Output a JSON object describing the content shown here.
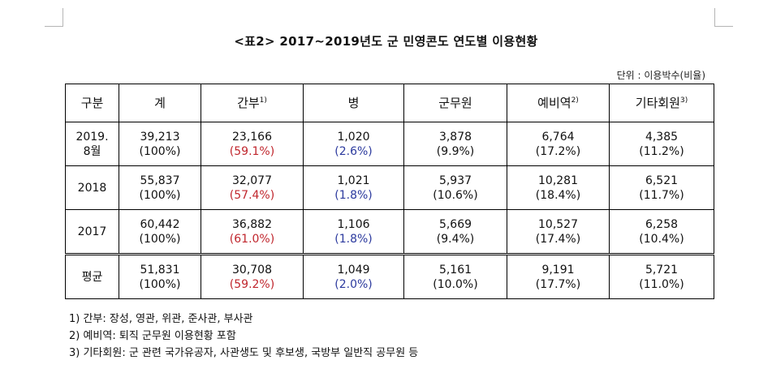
{
  "title": "<표2> 2017~2019년도 군 민영콘도 연도별 이용현황",
  "unit": "단위 : 이용박수(비율)",
  "columns": [
    {
      "label": "구분",
      "sup": ""
    },
    {
      "label": "계",
      "sup": ""
    },
    {
      "label": "간부",
      "sup": "1)"
    },
    {
      "label": "병",
      "sup": ""
    },
    {
      "label": "군무원",
      "sup": ""
    },
    {
      "label": "예비역",
      "sup": "2)"
    },
    {
      "label": "기타회원",
      "sup": "3)"
    }
  ],
  "rows": [
    {
      "label": "2019.\n8월",
      "cells": [
        {
          "value": "39,213",
          "pct": "(100%)"
        },
        {
          "value": "23,166",
          "pct": "(59.1%)"
        },
        {
          "value": "1,020",
          "pct": "(2.6%)"
        },
        {
          "value": "3,878",
          "pct": "(9.9%)"
        },
        {
          "value": "6,764",
          "pct": "(17.2%)"
        },
        {
          "value": "4,385",
          "pct": "(11.2%)"
        }
      ]
    },
    {
      "label": "2018",
      "cells": [
        {
          "value": "55,837",
          "pct": "(100%)"
        },
        {
          "value": "32,077",
          "pct": "(57.4%)"
        },
        {
          "value": "1,021",
          "pct": "(1.8%)"
        },
        {
          "value": "5,937",
          "pct": "(10.6%)"
        },
        {
          "value": "10,281",
          "pct": "(18.4%)"
        },
        {
          "value": "6,521",
          "pct": "(11.7%)"
        }
      ]
    },
    {
      "label": "2017",
      "cells": [
        {
          "value": "60,442",
          "pct": "(100%)"
        },
        {
          "value": "36,882",
          "pct": "(61.0%)"
        },
        {
          "value": "1,106",
          "pct": "(1.8%)"
        },
        {
          "value": "5,669",
          "pct": "(9.4%)"
        },
        {
          "value": "10,527",
          "pct": "(17.4%)"
        },
        {
          "value": "6,258",
          "pct": "(10.4%)"
        }
      ]
    },
    {
      "label": "평균",
      "cells": [
        {
          "value": "51,831",
          "pct": "(100%)"
        },
        {
          "value": "30,708",
          "pct": "(59.2%)"
        },
        {
          "value": "1,049",
          "pct": "(2.0%)"
        },
        {
          "value": "5,161",
          "pct": "(10.0%)"
        },
        {
          "value": "9,191",
          "pct": "(17.7%)"
        },
        {
          "value": "5,721",
          "pct": "(11.0%)"
        }
      ]
    }
  ],
  "colors": {
    "officer_pct": "#c0262d",
    "soldier_pct": "#2c3a9e"
  },
  "notes": [
    "1) 간부: 장성, 영관, 위관, 준사관, 부사관",
    "2) 예비역: 퇴직 군무원 이용현황 포함",
    "3) 기타회원: 군 관련 국가유공자, 사관생도 및 후보생, 국방부 일반직 공무원 등"
  ]
}
